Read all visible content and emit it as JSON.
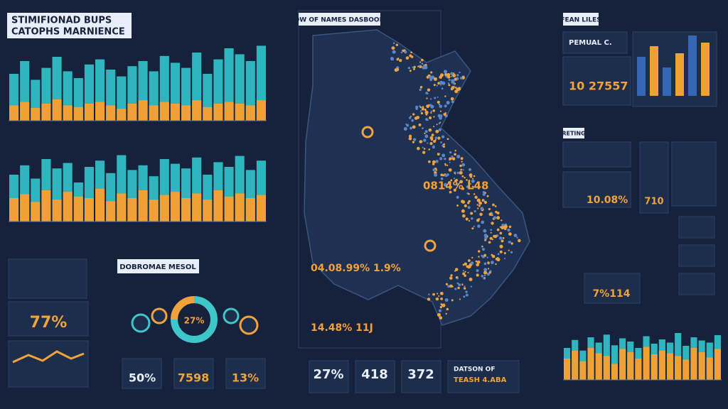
{
  "header": {
    "title_line1": "STIMIFIONAD BUPS",
    "title_line2": "CATOPHS MARNIENCE"
  },
  "charts": [
    {
      "teal": [
        55,
        70,
        48,
        62,
        75,
        58,
        50,
        66,
        72,
        60,
        52,
        64,
        70,
        58,
        76,
        68,
        62,
        80,
        55,
        72,
        85,
        78,
        70,
        88
      ],
      "orange": [
        18,
        22,
        15,
        20,
        25,
        18,
        16,
        20,
        22,
        18,
        14,
        20,
        24,
        18,
        22,
        20,
        18,
        24,
        16,
        20,
        22,
        20,
        18,
        24
      ]
    },
    {
      "teal": [
        60,
        72,
        55,
        80,
        68,
        75,
        50,
        70,
        78,
        62,
        85,
        66,
        72,
        58,
        80,
        74,
        68,
        82,
        60,
        76,
        70,
        84,
        66,
        78
      ],
      "orange": [
        30,
        35,
        25,
        40,
        28,
        38,
        32,
        30,
        42,
        26,
        36,
        30,
        40,
        28,
        34,
        38,
        30,
        36,
        28,
        40,
        32,
        36,
        30,
        34
      ]
    },
    {
      "teal": [
        60,
        75,
        55,
        80,
        70,
        85,
        65,
        78,
        72,
        60,
        82,
        68,
        76,
        70,
        88,
        64,
        80,
        74,
        70,
        84
      ],
      "orange": [
        40,
        55,
        35,
        60,
        50,
        45,
        30,
        58,
        52,
        40,
        62,
        48,
        55,
        50,
        45,
        38,
        60,
        52,
        42,
        58
      ]
    }
  ],
  "left_stats": {
    "value": "77%"
  },
  "donut_panel": {
    "title": "DOBROMAE MESOL",
    "donut_value": "27%",
    "stats": [
      "50%",
      "7598",
      "13%"
    ]
  },
  "map": {
    "title": "NOW OF NAMES DASBOORG",
    "labels": [
      "0814% L48",
      "04.08.99% 1.9%",
      "14.48% 11J"
    ]
  },
  "bottom_stats": {
    "values": [
      "27%",
      "418",
      "372"
    ],
    "caption_title": "DATSON OF",
    "caption_value": "TEASH 4.ABA"
  },
  "right_panel": {
    "title": "FEAN LILES",
    "label": "PEMUAL C.",
    "value": "10 27557",
    "mini_bars": [
      55,
      70,
      40,
      60,
      85,
      75
    ]
  },
  "rating": {
    "title": "RETING",
    "values": [
      "10.08%",
      "710",
      "7%114"
    ]
  }
}
